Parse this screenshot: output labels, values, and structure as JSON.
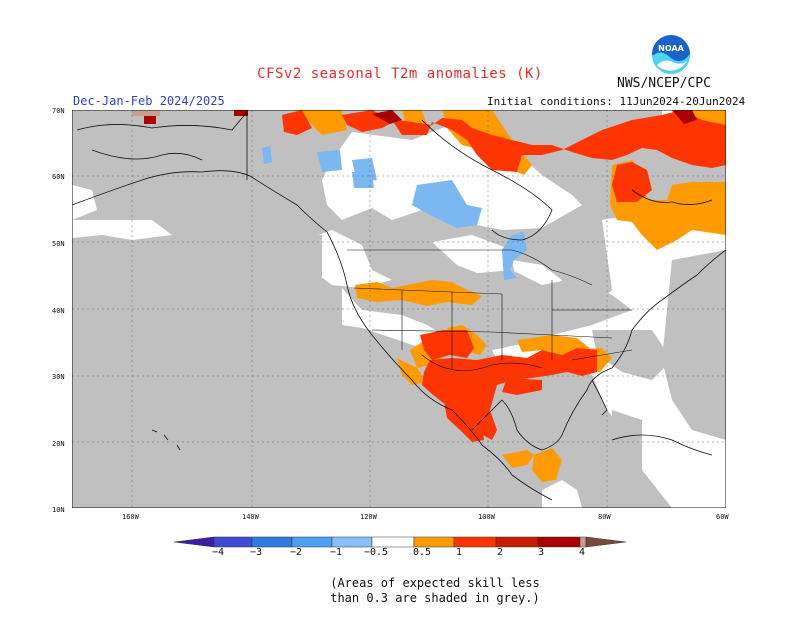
{
  "title": "CFSv2 seasonal T2m anomalies (K)",
  "season": "Dec-Jan-Feb 2024/2025",
  "initial_conditions": "Initial conditions: 11Jun2024-20Jun2024",
  "agency": "NWS/NCEP/CPC",
  "logo_text": "NOAA",
  "map": {
    "latitude_labels": [
      "70N",
      "60N",
      "50N",
      "40N",
      "30N",
      "20N",
      "10N"
    ],
    "longitude_labels": [
      "160W",
      "140W",
      "120W",
      "100W",
      "80W",
      "60W"
    ],
    "colors": {
      "skill_mask_grey": "#c0c0c0",
      "ocean_land_no_signal": "#ffffff",
      "minus_0_5_to_minus_1": "#7bb7f0",
      "plus_0_5_to_1": "#ff9a00",
      "plus_1_to_2": "#ff3500",
      "plus_2_to_3": "#a90000",
      "plus_3_to_4": "#c8a08f"
    }
  },
  "colorbar": {
    "labels": [
      "−4",
      "−3",
      "−2",
      "−1",
      "−0.5",
      "0.5",
      "1",
      "2",
      "3",
      "4"
    ],
    "colors": [
      "#3a1ea8",
      "#3e4bd2",
      "#2f7be0",
      "#4d9ff2",
      "#86c0f6",
      "#ffffff",
      "#ff9a00",
      "#ff3500",
      "#c81d00",
      "#a90000",
      "#c8a08f",
      "#7a4a3e"
    ]
  },
  "note": "(Areas of expected skill less than 0.3 are shaded in grey.)"
}
